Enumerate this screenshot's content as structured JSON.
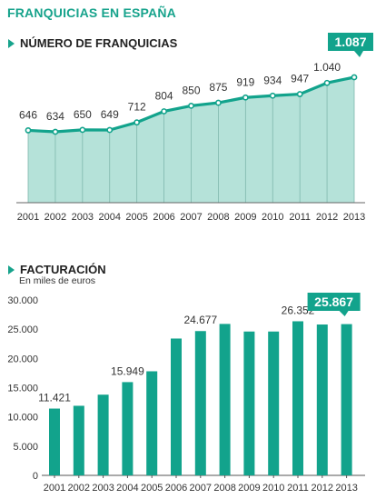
{
  "title": "FRANQUICIAS EN ESPAÑA",
  "chart_data": [
    {
      "type": "area",
      "title": "NÚMERO DE FRANQUICIAS",
      "categories": [
        "2001",
        "2002",
        "2003",
        "2004",
        "2005",
        "2006",
        "2007",
        "2008",
        "2009",
        "2010",
        "2011",
        "2012",
        "2013"
      ],
      "values": [
        646,
        634,
        650,
        649,
        712,
        804,
        850,
        875,
        919,
        934,
        947,
        1040,
        1087
      ],
      "value_labels": [
        "646",
        "634",
        "650",
        "649",
        "712",
        "804",
        "850",
        "875",
        "919",
        "934",
        "947",
        "1.040",
        "1.087"
      ],
      "highlight_label": "1.087",
      "colors": {
        "fill": "#b5e2d9",
        "line": "#12a38c",
        "highlight": "#12a38c"
      },
      "grid": false
    },
    {
      "type": "bar",
      "title": "FACTURACIÓN",
      "subtitle": "En miles de euros",
      "categories": [
        "2001",
        "2002",
        "2003",
        "2004",
        "2005",
        "2006",
        "2007",
        "2008",
        "2009",
        "2010",
        "2011",
        "2012",
        "2013"
      ],
      "values": [
        11421,
        11900,
        13800,
        15949,
        17800,
        23400,
        24677,
        25900,
        24600,
        24600,
        26352,
        25800,
        25867
      ],
      "data_labels": [
        {
          "index": 0,
          "text": "11.421"
        },
        {
          "index": 3,
          "text": "15.949"
        },
        {
          "index": 6,
          "text": "24.677"
        },
        {
          "index": 10,
          "text": "26.352"
        }
      ],
      "highlight_label": "25.867",
      "y_ticks": [
        "0",
        "5.000",
        "10.000",
        "15.000",
        "20.000",
        "25.000",
        "30.000"
      ],
      "ylim": [
        0,
        30000
      ],
      "colors": {
        "bar": "#12a38c",
        "highlight": "#12a38c"
      },
      "grid": false
    }
  ]
}
